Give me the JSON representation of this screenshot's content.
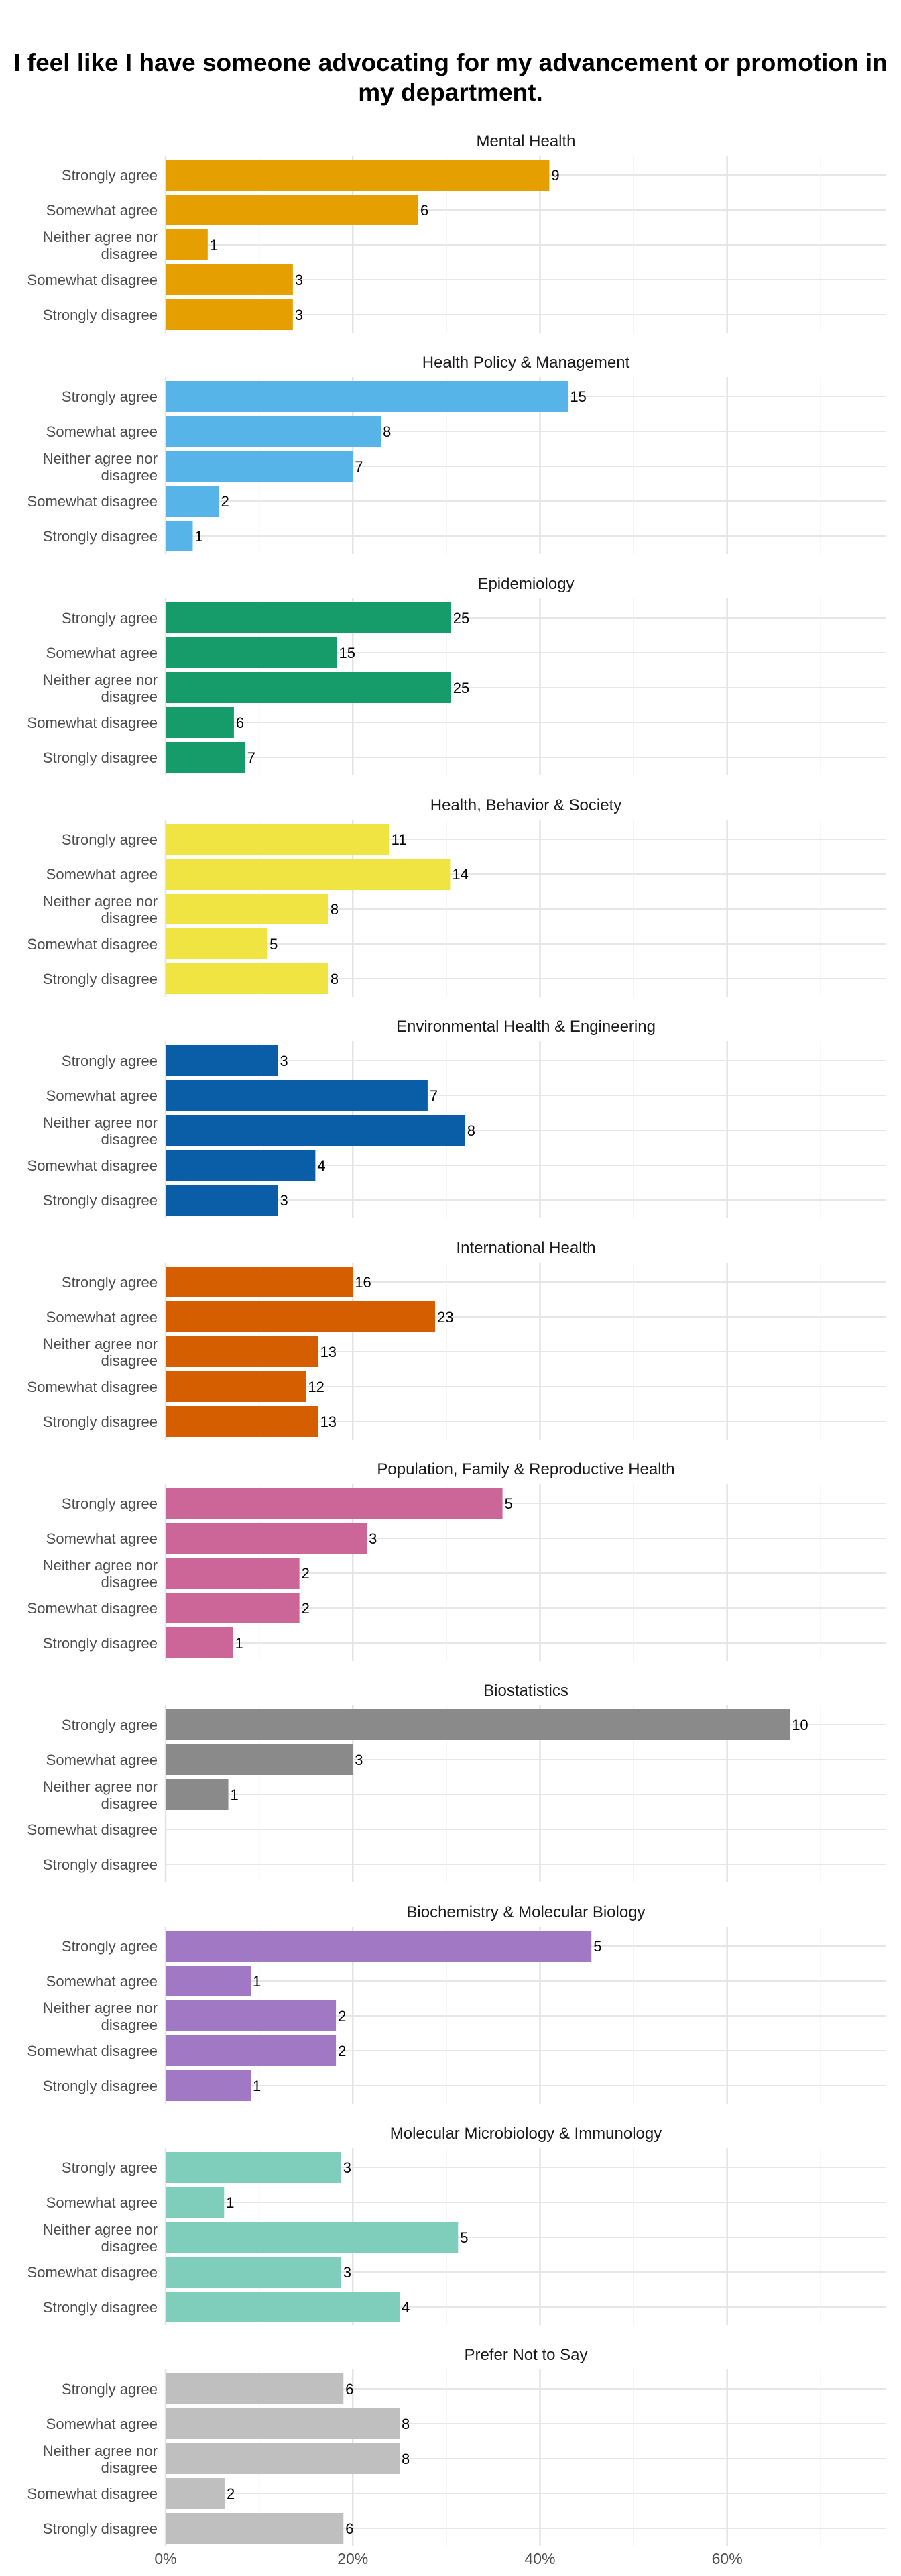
{
  "chart_data": {
    "type": "bar",
    "orientation": "horizontal",
    "title": "I feel like I have someone advocating for my advancement or promotion in my department.",
    "categories": [
      "Strongly agree",
      "Somewhat agree",
      "Neither agree nor disagree",
      "Somewhat disagree",
      "Strongly disagree"
    ],
    "x_ticks": [
      "0%",
      "20%",
      "40%",
      "60%"
    ],
    "xlim": [
      0,
      0.77
    ],
    "grid": true,
    "legend": "none",
    "panels": [
      {
        "title": "Mental Health",
        "color": "#E69F00",
        "counts": [
          9,
          6,
          1,
          3,
          3
        ],
        "share": [
          0.41,
          0.27,
          0.045,
          0.136,
          0.136
        ]
      },
      {
        "title": "Health Policy & Management",
        "color": "#56B4E9",
        "counts": [
          15,
          8,
          7,
          2,
          1
        ],
        "share": [
          0.43,
          0.23,
          0.2,
          0.057,
          0.029
        ]
      },
      {
        "title": "Epidemiology",
        "color": "#159C6A",
        "counts": [
          25,
          15,
          25,
          6,
          7
        ],
        "share": [
          0.305,
          0.183,
          0.305,
          0.073,
          0.085
        ]
      },
      {
        "title": "Health, Behavior & Society",
        "color": "#F0E442",
        "counts": [
          11,
          14,
          8,
          5,
          8
        ],
        "share": [
          0.239,
          0.304,
          0.174,
          0.109,
          0.174
        ]
      },
      {
        "title": "Environmental Health & Engineering",
        "color": "#0A5EA8",
        "counts": [
          3,
          7,
          8,
          4,
          3
        ],
        "share": [
          0.12,
          0.28,
          0.32,
          0.16,
          0.12
        ]
      },
      {
        "title": "International Health",
        "color": "#D55E00",
        "counts": [
          16,
          23,
          13,
          12,
          13
        ],
        "share": [
          0.2,
          0.288,
          0.163,
          0.15,
          0.163
        ]
      },
      {
        "title": "Population, Family & Reproductive Health",
        "color": "#CC6699",
        "counts": [
          5,
          3,
          2,
          2,
          1
        ],
        "share": [
          0.36,
          0.215,
          0.143,
          0.143,
          0.072
        ]
      },
      {
        "title": "Biostatistics",
        "color": "#8A8A8A",
        "counts": [
          10,
          3,
          1,
          null,
          null
        ],
        "share": [
          0.667,
          0.2,
          0.067,
          0,
          0
        ]
      },
      {
        "title": "Biochemistry & Molecular Biology",
        "color": "#A078C4",
        "counts": [
          5,
          1,
          2,
          2,
          1
        ],
        "share": [
          0.455,
          0.091,
          0.182,
          0.182,
          0.091
        ]
      },
      {
        "title": "Molecular Microbiology & Immunology",
        "color": "#7FCDBB",
        "counts": [
          3,
          1,
          5,
          3,
          4
        ],
        "share": [
          0.1875,
          0.0625,
          0.3125,
          0.1875,
          0.25
        ]
      },
      {
        "title": "Prefer Not to Say",
        "color": "#BFBFBF",
        "counts": [
          6,
          8,
          8,
          2,
          6
        ],
        "share": [
          0.19,
          0.25,
          0.25,
          0.063,
          0.19
        ]
      }
    ]
  }
}
